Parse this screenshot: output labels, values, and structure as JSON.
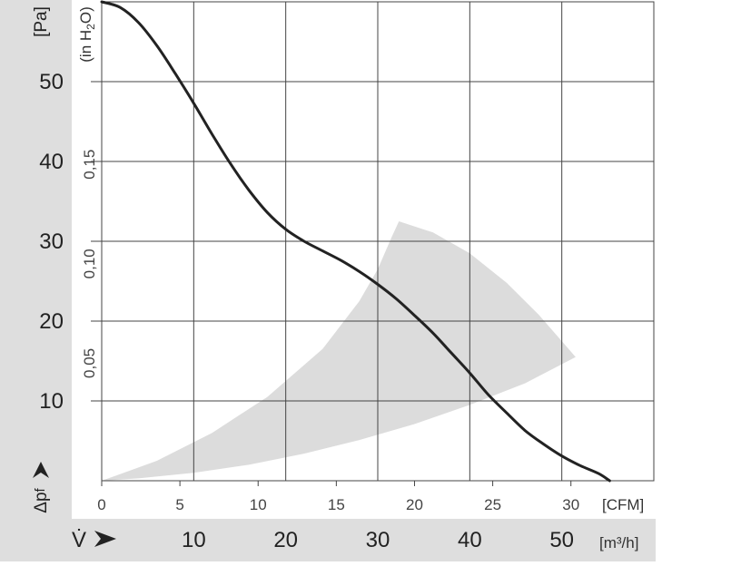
{
  "chart_data": {
    "type": "line",
    "title": "",
    "y_axis": {
      "symbol": "Δp",
      "subscript": "f",
      "unit": "[Pa]",
      "range": [
        0,
        60
      ],
      "ticks": [
        10,
        20,
        30,
        40,
        50
      ]
    },
    "y2_axis": {
      "unit_prefix": "(in H",
      "unit_sub": "2",
      "unit_suffix": "O)",
      "range": [
        0,
        0.2409
      ],
      "ticks": [
        {
          "value": 0.05,
          "label": "0,05"
        },
        {
          "value": 0.1,
          "label": "0,10"
        },
        {
          "value": 0.15,
          "label": "0,15"
        }
      ]
    },
    "x_axis": {
      "unit": "[CFM]",
      "range": [
        0,
        35.3
      ],
      "ticks": [
        0,
        5,
        10,
        15,
        20,
        25,
        30
      ]
    },
    "x2_axis": {
      "symbol": "V̇",
      "unit": "[m³/h]",
      "range": [
        0,
        60
      ],
      "ticks": [
        10,
        20,
        30,
        40,
        50
      ]
    },
    "grid": true,
    "series": [
      {
        "color": "#222222",
        "x_m3h": [
          0,
          2,
          4,
          6,
          8,
          10,
          12,
          14,
          16,
          18,
          20,
          22,
          24,
          26,
          28,
          30,
          32,
          34,
          36,
          38,
          40,
          42,
          44,
          46,
          48,
          50,
          52,
          54,
          55.2
        ],
        "y_pa": [
          60,
          59.3,
          57.4,
          54.5,
          51,
          47.3,
          43.4,
          39.7,
          36.4,
          33.6,
          31.5,
          30,
          28.8,
          27.6,
          26.2,
          24.6,
          22.8,
          20.7,
          18.5,
          16,
          13.5,
          10.8,
          8.5,
          6.3,
          4.6,
          3.1,
          1.9,
          0.9,
          0
        ]
      }
    ],
    "shaded_region": {
      "color": "#dcdcdc",
      "upper_x_m3h": [
        0,
        6,
        12,
        18,
        24,
        28,
        30,
        31.5,
        32.3
      ],
      "upper_y_pa": [
        0,
        2.5,
        6,
        10.5,
        16.5,
        22.5,
        26.5,
        30.5,
        32.5
      ],
      "right_x_m3h": [
        32.3,
        36,
        40,
        44,
        47.5,
        51.5
      ],
      "right_y_pa": [
        32.5,
        31.1,
        28.5,
        24.8,
        20.8,
        15.5
      ],
      "lower_x_m3h": [
        51.5,
        46,
        40,
        34,
        28,
        22,
        16,
        10,
        4,
        0
      ],
      "lower_y_pa": [
        15.5,
        12.2,
        9.5,
        7.1,
        5.1,
        3.4,
        2.0,
        1.0,
        0.3,
        0
      ]
    }
  }
}
